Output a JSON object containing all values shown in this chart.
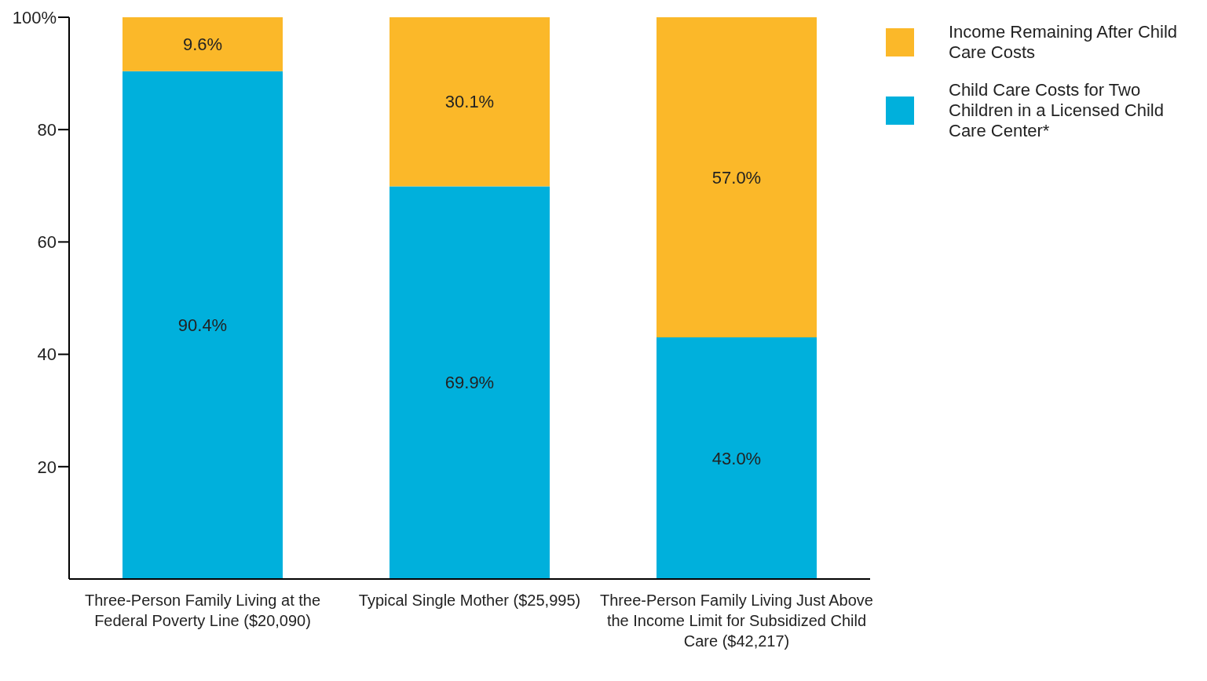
{
  "chart_data": {
    "type": "bar",
    "stacked": true,
    "categories": [
      "Three-Person Family Living at the Federal Poverty Line ($20,090)",
      "Typical Single Mother ($25,995)",
      "Three-Person Family Living Just Above the Income Limit for Subsidized Child Care ($42,217)"
    ],
    "series": [
      {
        "name": "Child Care Costs for Two Children in a Licensed Child Care Center*",
        "color": "#00b0dc",
        "values": [
          90.4,
          69.9,
          43.0
        ],
        "value_labels": [
          "90.4%",
          "69.9%",
          "43.0%"
        ]
      },
      {
        "name": "Income Remaining After Child Care Costs",
        "color": "#fbb829",
        "values": [
          9.6,
          30.1,
          57.0
        ],
        "value_labels": [
          "9.6%",
          "30.1%",
          "57.0%"
        ]
      }
    ],
    "ylim": [
      0,
      100
    ],
    "yticks": [
      20,
      40,
      60,
      80,
      {
        "value": 100,
        "label": "100%"
      }
    ],
    "grid": false,
    "legend": "top right"
  }
}
